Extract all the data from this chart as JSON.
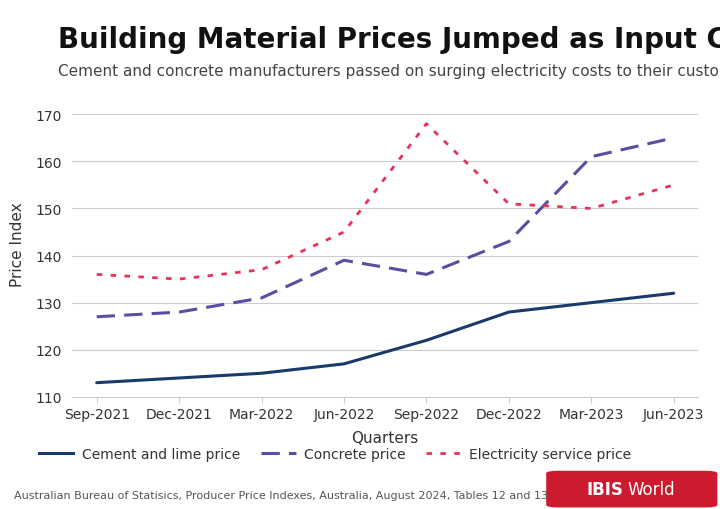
{
  "title": "Building Material Prices Jumped as Input Costs Climbed",
  "subtitle": "Cement and concrete manufacturers passed on surging electricity costs to their customers.",
  "xlabel": "Quarters",
  "ylabel": "Price Index",
  "source": "Australian Bureau of Statisics, Producer Price Indexes, Australia, August 2024, Tables 12 and 13",
  "x_labels": [
    "Sep-2021",
    "Dec-2021",
    "Mar-2022",
    "Jun-2022",
    "Sep-2022",
    "Dec-2022",
    "Mar-2023",
    "Jun-2023"
  ],
  "cement_lime": [
    113,
    114,
    115,
    117,
    122,
    128,
    130,
    132
  ],
  "concrete": [
    127,
    128,
    131,
    139,
    136,
    143,
    161,
    165
  ],
  "electricity": [
    136,
    135,
    137,
    145,
    168,
    151,
    150,
    155
  ],
  "cement_color": "#1a3a6b",
  "concrete_color": "#5b4da0",
  "electricity_color": "#e8325a",
  "ylim_min": 110,
  "ylim_max": 175,
  "yticks": [
    110,
    120,
    130,
    140,
    150,
    160,
    170
  ],
  "background_color": "#ffffff",
  "title_fontsize": 20,
  "subtitle_fontsize": 11,
  "axis_label_fontsize": 11,
  "tick_fontsize": 10,
  "legend_fontsize": 10,
  "source_fontsize": 8,
  "ibis_bold": "IBIS",
  "ibis_normal": "World",
  "ibis_color": "#cc1a2e"
}
